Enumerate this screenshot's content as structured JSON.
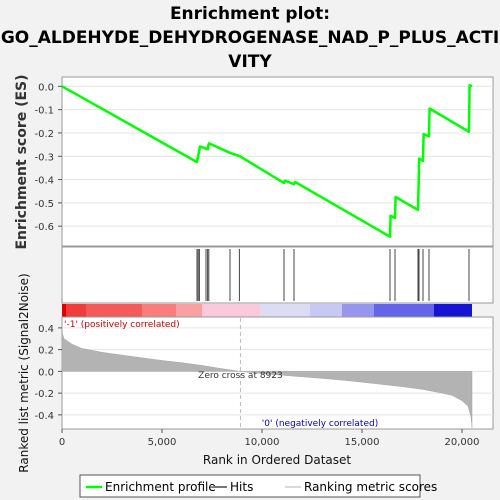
{
  "chart_data": {
    "type": "line",
    "title_lines": [
      "Enrichment plot:",
      "GO_ALDEHYDE_DEHYDROGENASE_NAD_P_PLUS_ACTI",
      "VITY"
    ],
    "xlabel": "Rank in Ordered Dataset",
    "xlim": [
      0,
      21500
    ],
    "x_ticks": [
      0,
      5000,
      10000,
      15000,
      20000
    ],
    "x_tick_labels": [
      "0",
      "5,000",
      "10,000",
      "15,000",
      "20,000"
    ],
    "es_panel": {
      "ylabel": "Enrichment score (ES)",
      "ylim": [
        -0.685,
        0.04
      ],
      "y_ticks": [
        0.0,
        -0.1,
        -0.2,
        -0.3,
        -0.4,
        -0.5,
        -0.6
      ],
      "y_tick_labels": [
        "0.0",
        "-0.1",
        "-0.2",
        "-0.3",
        "-0.4",
        "-0.5",
        "-0.6"
      ],
      "series": [
        {
          "name": "Enrichment profile",
          "color": "#00ff00",
          "x": [
            0,
            6750,
            6780,
            6800,
            6830,
            6900,
            7300,
            7320,
            7350,
            8400,
            8450,
            8900,
            11100,
            11150,
            11600,
            11650,
            16400,
            16430,
            16650,
            16680,
            17800,
            17830,
            17860,
            18050,
            18080,
            18350,
            18380,
            20350,
            20380,
            20500
          ],
          "y": [
            0.0,
            -0.325,
            -0.308,
            -0.31,
            -0.29,
            -0.258,
            -0.27,
            -0.252,
            -0.245,
            -0.285,
            -0.287,
            -0.3,
            -0.415,
            -0.405,
            -0.42,
            -0.41,
            -0.645,
            -0.555,
            -0.565,
            -0.475,
            -0.53,
            -0.425,
            -0.31,
            -0.32,
            -0.205,
            -0.215,
            -0.095,
            -0.195,
            0.005,
            0.0
          ]
        }
      ]
    },
    "hits": [
      6750,
      6810,
      6870,
      7200,
      7280,
      7340,
      8400,
      8870,
      11100,
      11600,
      16400,
      16650,
      17800,
      17850,
      18050,
      18350,
      20350
    ],
    "ranked_panel": {
      "ylabel": "Ranked list metric (Signal2Noise)",
      "ylim": [
        -0.53,
        0.5
      ],
      "y_ticks": [
        0.4,
        0.2,
        0.0,
        -0.2,
        -0.4
      ],
      "y_tick_labels": [
        "0.4",
        "0.2",
        "0.0",
        "-0.2",
        "-0.4"
      ],
      "metric_profile": {
        "x": [
          0,
          100,
          500,
          1000,
          2000,
          3000,
          4000,
          5000,
          6000,
          7000,
          8000,
          8923,
          10000,
          11000,
          12000,
          13000,
          14000,
          15000,
          16000,
          17000,
          18000,
          19000,
          19500,
          20000,
          20300,
          20450,
          20500
        ],
        "y": [
          0.36,
          0.3,
          0.25,
          0.21,
          0.175,
          0.15,
          0.125,
          0.1,
          0.08,
          0.055,
          0.025,
          0.0,
          -0.02,
          -0.035,
          -0.05,
          -0.065,
          -0.08,
          -0.1,
          -0.12,
          -0.14,
          -0.165,
          -0.2,
          -0.22,
          -0.27,
          -0.32,
          -0.42,
          -0.52
        ]
      },
      "zero_cross": 8923,
      "zero_cross_label": "Zero cross at 8923",
      "pos_label": "'-1' (positively correlated)",
      "neg_label": "'0' (negatively correlated)",
      "pos_color": "#cc0000",
      "neg_color": "#0000cc"
    },
    "heat_bar": {
      "segments": [
        {
          "x0": 0,
          "x1": 200,
          "color": "#e00000"
        },
        {
          "x0": 200,
          "x1": 1200,
          "color": "#f03c3c"
        },
        {
          "x0": 1200,
          "x1": 4000,
          "color": "#f55a5a"
        },
        {
          "x0": 4000,
          "x1": 5700,
          "color": "#f97d7d"
        },
        {
          "x0": 5700,
          "x1": 7000,
          "color": "#fba0a0"
        },
        {
          "x0": 7000,
          "x1": 9900,
          "color": "#fbc8dc"
        },
        {
          "x0": 9900,
          "x1": 12400,
          "color": "#dcdcf5"
        },
        {
          "x0": 12400,
          "x1": 14000,
          "color": "#c8c8f5"
        },
        {
          "x0": 14000,
          "x1": 15600,
          "color": "#9696f0"
        },
        {
          "x0": 15600,
          "x1": 18600,
          "color": "#6464ea"
        },
        {
          "x0": 18600,
          "x1": 20500,
          "color": "#1414d2"
        }
      ]
    },
    "legend": [
      {
        "label": "Enrichment profile",
        "color": "#00ff00"
      },
      {
        "label": "Hits",
        "color": "#777777"
      },
      {
        "label": "Ranking metric scores",
        "color": "#d9d9d9"
      }
    ]
  }
}
